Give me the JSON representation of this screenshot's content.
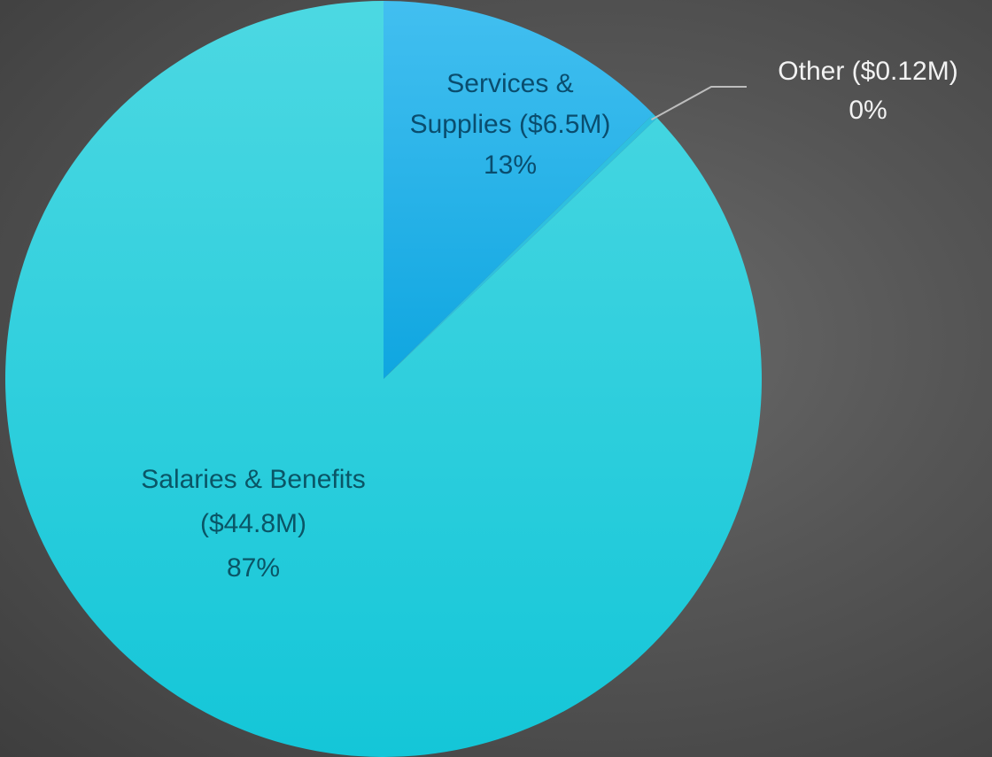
{
  "chart_data": {
    "type": "pie",
    "title": "",
    "slices": [
      {
        "name": "Services & Supplies",
        "value": 6.5,
        "amount_label": "($6.5M)",
        "percent_label": "13%",
        "color": "#1ab2ea",
        "color_light": "#3cc0f0",
        "label_lines": [
          "Services &",
          "Supplies ($6.5M)",
          "13%"
        ],
        "label_color": "#0a4d6e"
      },
      {
        "name": "Other",
        "value": 0.12,
        "amount_label": "($0.12M)",
        "percent_label": "0%",
        "color": "#2ec0e0",
        "color_light": "#2ec0e0",
        "label_lines": [
          "Other ($0.12M)",
          "0%"
        ],
        "label_color": "#f2f2f2",
        "leader_line": true
      },
      {
        "name": "Salaries & Benefits",
        "value": 44.8,
        "amount_label": "($44.8M)",
        "percent_label": "87%",
        "color": "#1ecbdc",
        "color_light": "#46d6e4",
        "label_lines": [
          "Salaries & Benefits",
          "($44.8M)",
          "87%"
        ],
        "label_color": "#0a5566"
      }
    ],
    "start_angle_deg": 0,
    "direction": "clockwise",
    "legend": "none",
    "background": "#555555"
  }
}
